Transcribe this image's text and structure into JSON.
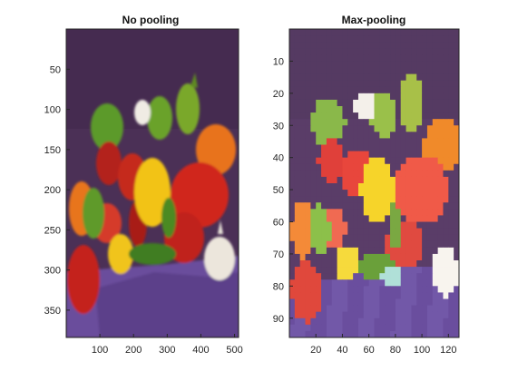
{
  "panels": [
    {
      "title": "No pooling",
      "x_ticks": [
        "100",
        "200",
        "300",
        "400",
        "500"
      ],
      "y_ticks": [
        "50",
        "100",
        "150",
        "200",
        "250",
        "300",
        "350"
      ],
      "x_range": [
        0,
        512
      ],
      "y_range": [
        0,
        384
      ],
      "image_subject": "peppers photograph (full resolution)"
    },
    {
      "title": "Max-pooling",
      "x_ticks": [
        "20",
        "40",
        "60",
        "80",
        "100",
        "120"
      ],
      "y_ticks": [
        "10",
        "20",
        "30",
        "40",
        "50",
        "60",
        "70",
        "80",
        "90"
      ],
      "x_range": [
        0,
        128
      ],
      "y_range": [
        0,
        96
      ],
      "image_subject": "peppers photograph (max-pooled, blocky)"
    }
  ],
  "colors": {
    "background_purple": "#4a2f55",
    "cloth_purple": "#6a4e9a",
    "red_pepper": "#c8281e",
    "orange_pepper": "#e8701a",
    "yellow_pepper": "#f2c818",
    "green_pepper": "#4f8a22",
    "garlic": "#e8e2d8"
  }
}
